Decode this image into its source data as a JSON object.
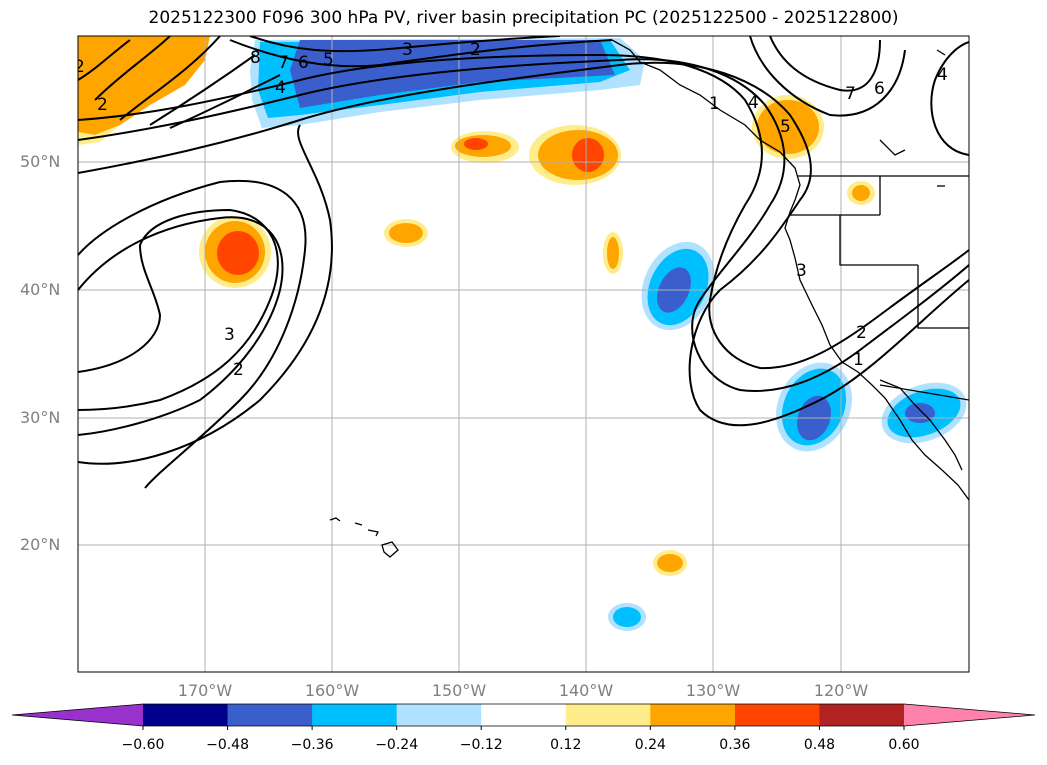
{
  "title": "2025122300 F096 300 hPa PV, river basin precipitation PC (2025122500 - 2025122800)",
  "latitude_labels": [
    "50°N",
    "40°N",
    "30°N",
    "20°N"
  ],
  "longitude_labels": [
    "170°W",
    "160°W",
    "150°W",
    "140°W",
    "130°W",
    "120°W"
  ],
  "contour_labels": [
    "8",
    "7",
    "6",
    "5",
    "4",
    "3",
    "2",
    "2",
    "2",
    "3",
    "2",
    "1",
    "4",
    "5",
    "7",
    "6",
    "4",
    "3",
    "2",
    "1"
  ],
  "colorbar": {
    "ticks": [
      "−0.60",
      "−0.48",
      "−0.36",
      "−0.24",
      "−0.12",
      "0.12",
      "0.24",
      "0.36",
      "0.48",
      "0.60"
    ],
    "colors": [
      "#9932cc",
      "#00008b",
      "#3a5fcd",
      "#00bfff",
      "#b0e2ff",
      "#ffffff",
      "#ffec8b",
      "#ffa500",
      "#ff4500",
      "#b22222",
      "#ff82ab"
    ]
  },
  "colors": {
    "land_line": "#000000",
    "grid": "#b0b0b0",
    "contour": "#000000",
    "axis_label": "#808080"
  }
}
